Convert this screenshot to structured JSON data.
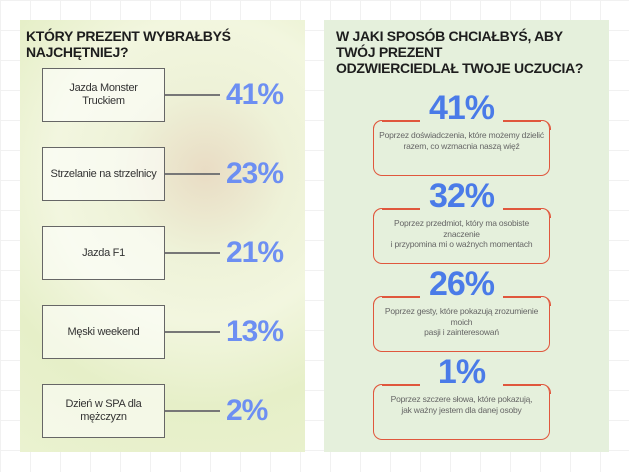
{
  "left": {
    "title": "KTÓRY PREZENT WYBRAŁBYŚ NAJCHĘTNIEJ?",
    "options": [
      {
        "label": "Jazda Monster Truckiem",
        "percent": "41%"
      },
      {
        "label": "Strzelanie na strzelnicy",
        "percent": "23%"
      },
      {
        "label": "Jazda F1",
        "percent": "21%"
      },
      {
        "label": "Męski weekend",
        "percent": "13%"
      },
      {
        "label": "Dzień w SPA dla mężczyzn",
        "percent": "2%"
      }
    ]
  },
  "right": {
    "title_line1": "W JAKI SPOSÓB CHCIAŁBYŚ, ABY TWÓJ PREZENT",
    "title_line2": "ODZWIERCIEDLAŁ TWOJE UCZUCIA?",
    "cards": [
      {
        "percent": "41%",
        "line1": "Poprzez doświadczenia, które możemy dzielić",
        "line2": "razem, co wzmacnia naszą więź"
      },
      {
        "percent": "32%",
        "line1": "Poprzez przedmiot, który ma osobiste znaczenie",
        "line2": "i przypomina mi o ważnych momentach"
      },
      {
        "percent": "26%",
        "line1": "Poprzez gesty, które pokazują zrozumienie moich",
        "line2": "pasji i zainteresowań"
      },
      {
        "percent": "1%",
        "line1": "Poprzez szczere słowa, które pokazują,",
        "line2": "jak ważny jestem dla danej osoby"
      }
    ]
  },
  "colors": {
    "percent_left": "#6d8ff2",
    "percent_right": "#4a7be8",
    "card_border": "#e0573d",
    "right_bg": "#e5f0dc"
  }
}
